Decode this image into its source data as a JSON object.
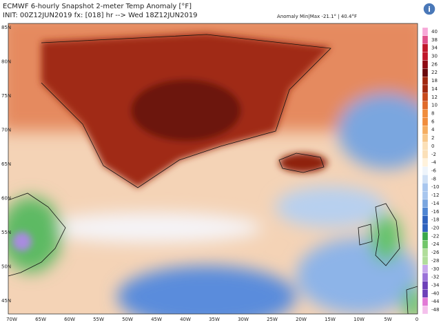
{
  "header": {
    "title": "ECMWF 6-hourly Snapshot 2-meter Temp Anomaly [°F]",
    "subtitle": "INIT: 00Z12JUN2019 fx: [018] hr --> Wed 18Z12JUN2019",
    "range": "Anomaly Min|Max -21.1° | 40.4°F"
  },
  "map": {
    "lat_labels": [
      "85N",
      "80N",
      "75N",
      "70N",
      "65N",
      "60N",
      "55N",
      "50N",
      "45N"
    ],
    "lon_labels": [
      "70W",
      "65W",
      "60W",
      "55W",
      "50W",
      "45W",
      "40W",
      "35W",
      "30W",
      "25W",
      "20W",
      "15W",
      "10W",
      "5W",
      "0"
    ]
  },
  "colorbar": {
    "labels": [
      40,
      38,
      34,
      30,
      26,
      22,
      18,
      14,
      12,
      10,
      8,
      6,
      4,
      2,
      0,
      -2,
      -4,
      -6,
      -8,
      -10,
      -12,
      -14,
      -16,
      -18,
      -20,
      -22,
      -24,
      -26,
      -28,
      -30,
      -32,
      -34,
      -40,
      -44,
      -48
    ]
  }
}
